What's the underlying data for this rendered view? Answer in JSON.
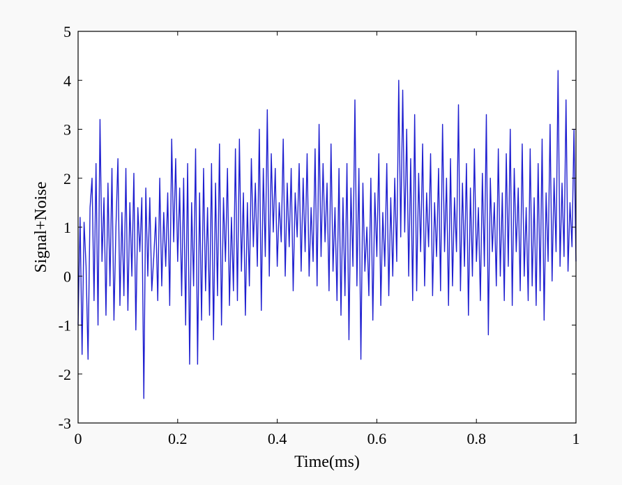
{
  "chart_data": {
    "type": "line",
    "title": "",
    "xlabel": "Time(ms)",
    "ylabel": "Signal+Noise",
    "xlim": [
      0,
      1
    ],
    "ylim": [
      -3,
      5
    ],
    "x_ticks": [
      "0",
      "0.2",
      "0.4",
      "0.6",
      "0.8",
      "1"
    ],
    "y_ticks": [
      "5",
      "4",
      "3",
      "2",
      "1",
      "0",
      "-1",
      "-2",
      "-3"
    ],
    "grid": false,
    "legend": "none",
    "series": [
      {
        "color": "#1f1fd0",
        "description_points": [
          [
            0.0,
            -1.0
          ],
          [
            0.004,
            1.2
          ],
          [
            0.008,
            -1.6
          ],
          [
            0.012,
            1.1
          ],
          [
            0.016,
            0.2
          ],
          [
            0.02,
            -1.7
          ],
          [
            0.024,
            1.4
          ],
          [
            0.028,
            2.0
          ],
          [
            0.032,
            -0.5
          ],
          [
            0.036,
            2.3
          ],
          [
            0.04,
            -1.0
          ],
          [
            0.044,
            3.2
          ],
          [
            0.048,
            0.3
          ],
          [
            0.052,
            1.6
          ],
          [
            0.056,
            -0.8
          ],
          [
            0.06,
            1.9
          ],
          [
            0.064,
            -0.2
          ],
          [
            0.068,
            2.2
          ],
          [
            0.072,
            -0.9
          ],
          [
            0.076,
            1.0
          ],
          [
            0.08,
            2.4
          ],
          [
            0.084,
            -0.6
          ],
          [
            0.088,
            1.3
          ],
          [
            0.092,
            -0.4
          ],
          [
            0.096,
            2.2
          ],
          [
            0.1,
            -0.7
          ],
          [
            0.104,
            1.5
          ],
          [
            0.108,
            0.0
          ],
          [
            0.112,
            2.1
          ],
          [
            0.116,
            -1.1
          ],
          [
            0.12,
            1.4
          ],
          [
            0.124,
            0.5
          ],
          [
            0.128,
            1.6
          ],
          [
            0.132,
            -2.5
          ],
          [
            0.136,
            1.8
          ],
          [
            0.14,
            0.0
          ],
          [
            0.144,
            1.6
          ],
          [
            0.148,
            -0.3
          ],
          [
            0.152,
            0.4
          ],
          [
            0.156,
            1.2
          ],
          [
            0.16,
            -0.5
          ],
          [
            0.164,
            2.0
          ],
          [
            0.168,
            -0.2
          ],
          [
            0.172,
            1.3
          ],
          [
            0.176,
            0.2
          ],
          [
            0.18,
            1.7
          ],
          [
            0.184,
            -0.6
          ],
          [
            0.188,
            2.8
          ],
          [
            0.192,
            0.7
          ],
          [
            0.196,
            2.4
          ],
          [
            0.2,
            0.3
          ],
          [
            0.204,
            1.8
          ],
          [
            0.208,
            -0.4
          ],
          [
            0.212,
            2.0
          ],
          [
            0.216,
            -1.0
          ],
          [
            0.22,
            2.3
          ],
          [
            0.224,
            -1.8
          ],
          [
            0.228,
            1.5
          ],
          [
            0.232,
            -0.2
          ],
          [
            0.236,
            2.6
          ],
          [
            0.24,
            -1.8
          ],
          [
            0.244,
            1.7
          ],
          [
            0.248,
            -0.9
          ],
          [
            0.252,
            2.2
          ],
          [
            0.256,
            -0.3
          ],
          [
            0.26,
            1.4
          ],
          [
            0.264,
            -0.8
          ],
          [
            0.268,
            2.3
          ],
          [
            0.272,
            -1.3
          ],
          [
            0.276,
            1.9
          ],
          [
            0.28,
            -0.4
          ],
          [
            0.284,
            2.7
          ],
          [
            0.288,
            -1.0
          ],
          [
            0.292,
            1.6
          ],
          [
            0.296,
            0.3
          ],
          [
            0.3,
            2.2
          ],
          [
            0.304,
            -0.6
          ],
          [
            0.308,
            1.2
          ],
          [
            0.312,
            -0.3
          ],
          [
            0.316,
            2.6
          ],
          [
            0.32,
            -0.5
          ],
          [
            0.324,
            2.8
          ],
          [
            0.328,
            0.1
          ],
          [
            0.332,
            1.7
          ],
          [
            0.336,
            -0.8
          ],
          [
            0.34,
            1.5
          ],
          [
            0.344,
            -0.2
          ],
          [
            0.348,
            2.4
          ],
          [
            0.352,
            0.6
          ],
          [
            0.356,
            1.9
          ],
          [
            0.36,
            0.2
          ],
          [
            0.364,
            3.0
          ],
          [
            0.368,
            -0.7
          ],
          [
            0.372,
            2.2
          ],
          [
            0.376,
            0.4
          ],
          [
            0.38,
            3.4
          ],
          [
            0.384,
            0.0
          ],
          [
            0.388,
            2.5
          ],
          [
            0.392,
            0.9
          ],
          [
            0.396,
            2.2
          ],
          [
            0.4,
            0.2
          ],
          [
            0.404,
            1.5
          ],
          [
            0.408,
            0.7
          ],
          [
            0.412,
            2.8
          ],
          [
            0.416,
            0.0
          ],
          [
            0.42,
            1.9
          ],
          [
            0.424,
            0.6
          ],
          [
            0.428,
            2.2
          ],
          [
            0.432,
            -0.3
          ],
          [
            0.436,
            1.7
          ],
          [
            0.44,
            0.8
          ],
          [
            0.444,
            2.3
          ],
          [
            0.448,
            0.1
          ],
          [
            0.452,
            2.0
          ],
          [
            0.456,
            0.5
          ],
          [
            0.46,
            2.5
          ],
          [
            0.464,
            0.0
          ],
          [
            0.468,
            1.4
          ],
          [
            0.472,
            0.3
          ],
          [
            0.476,
            2.6
          ],
          [
            0.48,
            -0.2
          ],
          [
            0.484,
            3.1
          ],
          [
            0.488,
            0.4
          ],
          [
            0.492,
            2.3
          ],
          [
            0.496,
            0.7
          ],
          [
            0.5,
            1.9
          ],
          [
            0.504,
            -0.3
          ],
          [
            0.508,
            2.7
          ],
          [
            0.512,
            0.1
          ],
          [
            0.516,
            1.4
          ],
          [
            0.52,
            -0.5
          ],
          [
            0.524,
            2.2
          ],
          [
            0.528,
            -0.8
          ],
          [
            0.532,
            1.6
          ],
          [
            0.536,
            -0.4
          ],
          [
            0.54,
            2.3
          ],
          [
            0.544,
            -1.3
          ],
          [
            0.548,
            1.8
          ],
          [
            0.552,
            0.2
          ],
          [
            0.556,
            3.6
          ],
          [
            0.56,
            -0.2
          ],
          [
            0.564,
            2.2
          ],
          [
            0.568,
            -1.7
          ],
          [
            0.572,
            1.9
          ],
          [
            0.576,
            0.1
          ],
          [
            0.58,
            1.0
          ],
          [
            0.584,
            -0.4
          ],
          [
            0.588,
            2.0
          ],
          [
            0.592,
            -0.9
          ],
          [
            0.596,
            1.7
          ],
          [
            0.6,
            0.4
          ],
          [
            0.604,
            2.5
          ],
          [
            0.608,
            -0.6
          ],
          [
            0.612,
            1.3
          ],
          [
            0.616,
            0.2
          ],
          [
            0.62,
            2.3
          ],
          [
            0.624,
            -0.4
          ],
          [
            0.628,
            1.6
          ],
          [
            0.632,
            0.0
          ],
          [
            0.636,
            2.0
          ],
          [
            0.64,
            0.3
          ],
          [
            0.644,
            4.0
          ],
          [
            0.648,
            0.8
          ],
          [
            0.652,
            3.8
          ],
          [
            0.656,
            0.9
          ],
          [
            0.66,
            3.0
          ],
          [
            0.664,
            0.0
          ],
          [
            0.668,
            2.4
          ],
          [
            0.672,
            -0.5
          ],
          [
            0.676,
            3.3
          ],
          [
            0.68,
            -0.3
          ],
          [
            0.684,
            2.1
          ],
          [
            0.688,
            0.5
          ],
          [
            0.692,
            2.7
          ],
          [
            0.696,
            -0.2
          ],
          [
            0.7,
            1.7
          ],
          [
            0.704,
            0.6
          ],
          [
            0.708,
            2.5
          ],
          [
            0.712,
            -0.4
          ],
          [
            0.716,
            1.5
          ],
          [
            0.72,
            0.4
          ],
          [
            0.724,
            2.2
          ],
          [
            0.728,
            -0.3
          ],
          [
            0.732,
            3.1
          ],
          [
            0.736,
            0.5
          ],
          [
            0.74,
            2.0
          ],
          [
            0.744,
            -0.6
          ],
          [
            0.748,
            2.4
          ],
          [
            0.752,
            -0.2
          ],
          [
            0.756,
            1.6
          ],
          [
            0.76,
            0.5
          ],
          [
            0.764,
            3.5
          ],
          [
            0.768,
            -0.3
          ],
          [
            0.772,
            1.9
          ],
          [
            0.776,
            0.2
          ],
          [
            0.78,
            2.3
          ],
          [
            0.784,
            -0.8
          ],
          [
            0.788,
            1.8
          ],
          [
            0.792,
            0.0
          ],
          [
            0.796,
            2.6
          ],
          [
            0.8,
            0.3
          ],
          [
            0.804,
            1.4
          ],
          [
            0.808,
            -0.5
          ],
          [
            0.812,
            2.1
          ],
          [
            0.816,
            0.2
          ],
          [
            0.82,
            3.3
          ],
          [
            0.824,
            -1.2
          ],
          [
            0.828,
            2.0
          ],
          [
            0.832,
            0.5
          ],
          [
            0.836,
            1.5
          ],
          [
            0.84,
            -0.2
          ],
          [
            0.844,
            2.6
          ],
          [
            0.848,
            0.0
          ],
          [
            0.852,
            1.7
          ],
          [
            0.856,
            -0.5
          ],
          [
            0.86,
            2.5
          ],
          [
            0.864,
            0.2
          ],
          [
            0.868,
            3.0
          ],
          [
            0.872,
            -0.6
          ],
          [
            0.876,
            2.2
          ],
          [
            0.88,
            0.5
          ],
          [
            0.884,
            1.8
          ],
          [
            0.888,
            -0.3
          ],
          [
            0.892,
            2.7
          ],
          [
            0.896,
            0.0
          ],
          [
            0.9,
            1.4
          ],
          [
            0.904,
            -0.5
          ],
          [
            0.908,
            2.6
          ],
          [
            0.912,
            -0.2
          ],
          [
            0.916,
            1.6
          ],
          [
            0.92,
            -0.6
          ],
          [
            0.924,
            2.3
          ],
          [
            0.928,
            -0.3
          ],
          [
            0.932,
            2.8
          ],
          [
            0.936,
            -0.9
          ],
          [
            0.94,
            1.7
          ],
          [
            0.944,
            0.3
          ],
          [
            0.948,
            3.1
          ],
          [
            0.952,
            -0.1
          ],
          [
            0.956,
            2.0
          ],
          [
            0.96,
            0.5
          ],
          [
            0.964,
            4.2
          ],
          [
            0.968,
            0.2
          ],
          [
            0.972,
            1.9
          ],
          [
            0.976,
            0.4
          ],
          [
            0.98,
            3.6
          ],
          [
            0.984,
            0.1
          ],
          [
            0.988,
            1.5
          ],
          [
            0.992,
            0.6
          ],
          [
            0.996,
            3.0
          ],
          [
            1.0,
            0.3
          ]
        ]
      }
    ]
  }
}
